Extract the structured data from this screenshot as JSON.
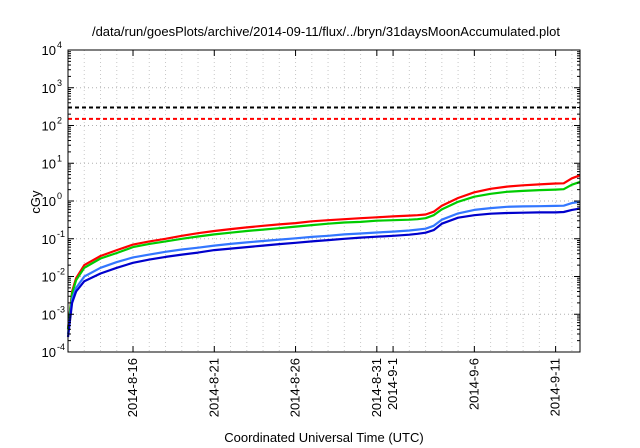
{
  "chart_data": {
    "type": "line",
    "title": "/data/run/goesPlots/archive/2014-09-11/flux/../bryn/31daysMoonAccumulated.plot",
    "xlabel": "Coordinated Universal Time (UTC)",
    "ylabel": "cGy",
    "log_y": true,
    "ylim": [
      0.0001,
      10000
    ],
    "xlim": [
      "2014-08-12",
      "2014-09-12 12:00"
    ],
    "grid": true,
    "y_tick_labels": [
      {
        "base": "10",
        "exp": "-4"
      },
      {
        "base": "10",
        "exp": "-3"
      },
      {
        "base": "10",
        "exp": "-2"
      },
      {
        "base": "10",
        "exp": "-1"
      },
      {
        "base": "10",
        "exp": "0"
      },
      {
        "base": "10",
        "exp": "1"
      },
      {
        "base": "10",
        "exp": "2"
      },
      {
        "base": "10",
        "exp": "3"
      },
      {
        "base": "10",
        "exp": "4"
      }
    ],
    "x_tick_labels": [
      {
        "date": "2014-08-16",
        "lines": [
          "2014-8-16"
        ]
      },
      {
        "date": "2014-08-21",
        "lines": [
          "2014-8-21"
        ]
      },
      {
        "date": "2014-08-26",
        "lines": [
          "2014-8-26"
        ]
      },
      {
        "date": "2014-08-31",
        "lines": [
          "2014-8-31",
          "2014-9-1"
        ]
      },
      {
        "date": "2014-09-06",
        "lines": [
          "2014-9-6"
        ]
      },
      {
        "date": "2014-09-11",
        "lines": [
          "2014-9-11"
        ]
      }
    ],
    "x_minor_days": [
      "2014-08-11",
      "2014-08-16",
      "2014-08-21",
      "2014-08-26",
      "2014-08-31",
      "2014-09-01",
      "2014-09-06",
      "2014-09-11"
    ],
    "reference_lines": [
      {
        "value": 300,
        "color": "#000000",
        "style": "dashed"
      },
      {
        "value": 150,
        "color": "#ff0000",
        "style": "dashed"
      }
    ],
    "series": [
      {
        "color": "#ff0000",
        "x": [
          "2014-08-12",
          "2014-08-12 06:00",
          "2014-08-12 12:00",
          "2014-08-13",
          "2014-08-14",
          "2014-08-15",
          "2014-08-16",
          "2014-08-17",
          "2014-08-18",
          "2014-08-19",
          "2014-08-20",
          "2014-08-21",
          "2014-08-22",
          "2014-08-23",
          "2014-08-24",
          "2014-08-25",
          "2014-08-26",
          "2014-08-27",
          "2014-08-28",
          "2014-08-29",
          "2014-08-30",
          "2014-08-31",
          "2014-09-01",
          "2014-09-02",
          "2014-09-02 12:00",
          "2014-09-03",
          "2014-09-03 12:00",
          "2014-09-04",
          "2014-09-05",
          "2014-09-06",
          "2014-09-07",
          "2014-09-08",
          "2014-09-09",
          "2014-09-10",
          "2014-09-11",
          "2014-09-11 12:00",
          "2014-09-12",
          "2014-09-12 12:00"
        ],
        "y": [
          0.0004,
          0.004,
          0.009,
          0.02,
          0.035,
          0.05,
          0.07,
          0.085,
          0.1,
          0.12,
          0.14,
          0.16,
          0.18,
          0.2,
          0.22,
          0.24,
          0.26,
          0.29,
          0.31,
          0.33,
          0.35,
          0.37,
          0.39,
          0.41,
          0.42,
          0.44,
          0.52,
          0.75,
          1.2,
          1.7,
          2.1,
          2.4,
          2.6,
          2.75,
          2.9,
          2.95,
          4.0,
          4.8
        ]
      },
      {
        "color": "#00cc00",
        "x": [
          "2014-08-12",
          "2014-08-12 06:00",
          "2014-08-12 12:00",
          "2014-08-13",
          "2014-08-14",
          "2014-08-15",
          "2014-08-16",
          "2014-08-17",
          "2014-08-18",
          "2014-08-19",
          "2014-08-20",
          "2014-08-21",
          "2014-08-22",
          "2014-08-23",
          "2014-08-24",
          "2014-08-25",
          "2014-08-26",
          "2014-08-27",
          "2014-08-28",
          "2014-08-29",
          "2014-08-30",
          "2014-08-31",
          "2014-09-01",
          "2014-09-02",
          "2014-09-02 12:00",
          "2014-09-03",
          "2014-09-03 12:00",
          "2014-09-04",
          "2014-09-05",
          "2014-09-06",
          "2014-09-07",
          "2014-09-08",
          "2014-09-09",
          "2014-09-10",
          "2014-09-11",
          "2014-09-11 12:00",
          "2014-09-12",
          "2014-09-12 12:00"
        ],
        "y": [
          0.0004,
          0.0035,
          0.008,
          0.017,
          0.03,
          0.042,
          0.06,
          0.073,
          0.085,
          0.1,
          0.115,
          0.13,
          0.145,
          0.16,
          0.175,
          0.19,
          0.21,
          0.23,
          0.25,
          0.27,
          0.28,
          0.3,
          0.31,
          0.32,
          0.33,
          0.35,
          0.42,
          0.6,
          0.95,
          1.3,
          1.55,
          1.75,
          1.85,
          1.95,
          2.0,
          2.05,
          2.7,
          3.2
        ]
      },
      {
        "color": "#3377ff",
        "x": [
          "2014-08-12",
          "2014-08-12 06:00",
          "2014-08-12 12:00",
          "2014-08-13",
          "2014-08-14",
          "2014-08-15",
          "2014-08-16",
          "2014-08-17",
          "2014-08-18",
          "2014-08-19",
          "2014-08-20",
          "2014-08-21",
          "2014-08-22",
          "2014-08-23",
          "2014-08-24",
          "2014-08-25",
          "2014-08-26",
          "2014-08-27",
          "2014-08-28",
          "2014-08-29",
          "2014-08-30",
          "2014-08-31",
          "2014-09-01",
          "2014-09-02",
          "2014-09-02 12:00",
          "2014-09-03",
          "2014-09-03 12:00",
          "2014-09-04",
          "2014-09-05",
          "2014-09-06",
          "2014-09-07",
          "2014-09-08",
          "2014-09-09",
          "2014-09-10",
          "2014-09-11",
          "2014-09-11 12:00",
          "2014-09-12",
          "2014-09-12 12:00"
        ],
        "y": [
          0.0003,
          0.0025,
          0.005,
          0.01,
          0.017,
          0.024,
          0.032,
          0.038,
          0.045,
          0.052,
          0.058,
          0.066,
          0.073,
          0.08,
          0.087,
          0.095,
          0.103,
          0.112,
          0.12,
          0.13,
          0.138,
          0.146,
          0.155,
          0.165,
          0.175,
          0.185,
          0.22,
          0.32,
          0.47,
          0.58,
          0.65,
          0.7,
          0.72,
          0.73,
          0.74,
          0.75,
          0.88,
          0.95
        ]
      },
      {
        "color": "#0000cc",
        "x": [
          "2014-08-12",
          "2014-08-12 06:00",
          "2014-08-12 12:00",
          "2014-08-13",
          "2014-08-14",
          "2014-08-15",
          "2014-08-16",
          "2014-08-17",
          "2014-08-18",
          "2014-08-19",
          "2014-08-20",
          "2014-08-21",
          "2014-08-22",
          "2014-08-23",
          "2014-08-24",
          "2014-08-25",
          "2014-08-26",
          "2014-08-27",
          "2014-08-28",
          "2014-08-29",
          "2014-08-30",
          "2014-08-31",
          "2014-09-01",
          "2014-09-02",
          "2014-09-02 12:00",
          "2014-09-03",
          "2014-09-03 12:00",
          "2014-09-04",
          "2014-09-05",
          "2014-09-06",
          "2014-09-07",
          "2014-09-08",
          "2014-09-09",
          "2014-09-10",
          "2014-09-11",
          "2014-09-11 12:00",
          "2014-09-12",
          "2014-09-12 12:00"
        ],
        "y": [
          0.00025,
          0.002,
          0.004,
          0.0075,
          0.012,
          0.017,
          0.023,
          0.028,
          0.033,
          0.038,
          0.043,
          0.05,
          0.055,
          0.06,
          0.066,
          0.072,
          0.078,
          0.085,
          0.092,
          0.1,
          0.107,
          0.113,
          0.12,
          0.128,
          0.135,
          0.145,
          0.17,
          0.25,
          0.36,
          0.42,
          0.46,
          0.48,
          0.49,
          0.5,
          0.5,
          0.51,
          0.58,
          0.63
        ]
      }
    ]
  }
}
